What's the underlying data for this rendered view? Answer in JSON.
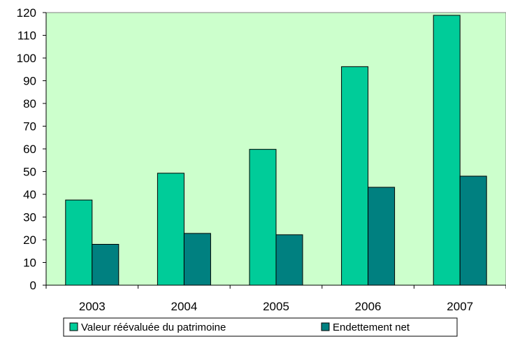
{
  "chart_data": {
    "type": "bar",
    "categories": [
      "2003",
      "2004",
      "2005",
      "2006",
      "2007"
    ],
    "series": [
      {
        "name": "Valeur réévaluée du patrimoine",
        "values": [
          37.5,
          49.3,
          59.8,
          96.2,
          118.8
        ],
        "color": "#00CC99"
      },
      {
        "name": "Endettement net",
        "values": [
          18,
          22.8,
          22.2,
          43.1,
          48
        ],
        "color": "#008080"
      }
    ],
    "ylim": [
      0,
      120
    ],
    "yticks": [
      0,
      10,
      20,
      30,
      40,
      50,
      60,
      70,
      80,
      90,
      100,
      110,
      120
    ],
    "plot_background": "#CCFFCC",
    "grid": false,
    "legend_position": "bottom",
    "title": "",
    "xlabel": "",
    "ylabel": ""
  }
}
